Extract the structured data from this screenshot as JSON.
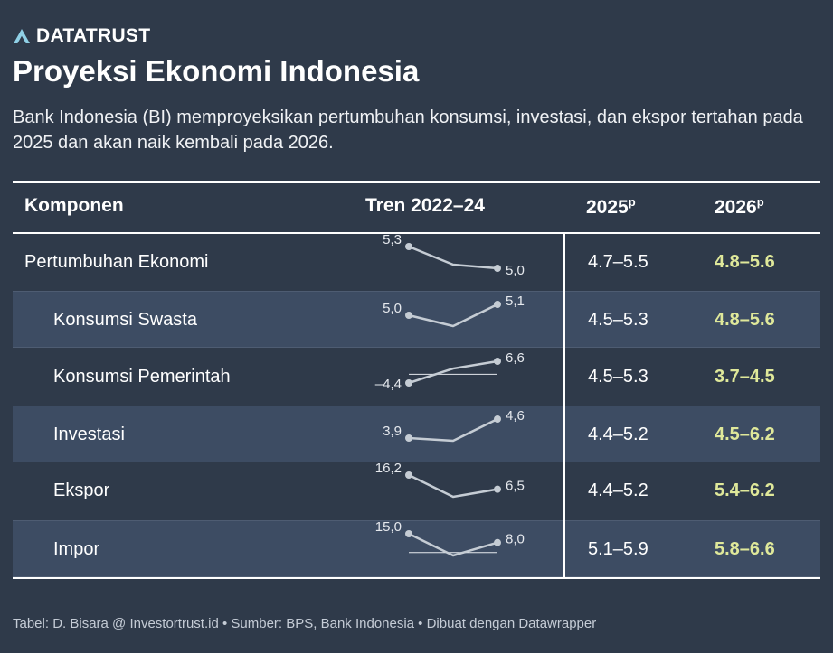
{
  "brand": {
    "name": "DATATRUST"
  },
  "title": "Proyeksi Ekonomi Indonesia",
  "subtitle": "Bank Indonesia (BI) memproyeksikan pertumbuhan konsumsi, investasi, dan ekspor tertahan pada 2025 dan akan naik kembali pada 2026.",
  "table": {
    "headers": {
      "component": "Komponen",
      "trend": "Tren 2022–24",
      "y2025": "2025",
      "y2025_sup": "p",
      "y2026": "2026",
      "y2026_sup": "p"
    },
    "rows": [
      {
        "label": "Pertumbuhan Ekonomi",
        "v2025": "4.7–5.5",
        "v2026": "4.8–5.6",
        "trend_start_label": "5,3",
        "trend_end_label": "5,0"
      },
      {
        "label": "Konsumsi Swasta",
        "v2025": "4.5–5.3",
        "v2026": "4.8–5.6",
        "trend_start_label": "5,0",
        "trend_end_label": "5,1"
      },
      {
        "label": "Konsumsi Pemerintah",
        "v2025": "4.5–5.3",
        "v2026": "3.7–4.5",
        "trend_start_label": "–4,4",
        "trend_end_label": "6,6"
      },
      {
        "label": "Investasi",
        "v2025": "4.4–5.2",
        "v2026": "4.5–6.2",
        "trend_start_label": "3,9",
        "trend_end_label": "4,6"
      },
      {
        "label": "Ekspor",
        "v2025": "4.4–5.2",
        "v2026": "5.4–6.2",
        "trend_start_label": "16,2",
        "trend_end_label": "6,5"
      },
      {
        "label": "Impor",
        "v2025": "5.1–5.9",
        "v2026": "5.8–6.6",
        "trend_start_label": "15,0",
        "trend_end_label": "8,0"
      }
    ]
  },
  "chart_data": {
    "type": "line",
    "title": "Tren 2022–24",
    "x": [
      2022,
      2023,
      2024
    ],
    "series": [
      {
        "name": "Pertumbuhan Ekonomi",
        "values": [
          5.3,
          5.05,
          5.0
        ]
      },
      {
        "name": "Konsumsi Swasta",
        "values": [
          5.0,
          4.9,
          5.1
        ]
      },
      {
        "name": "Konsumsi Pemerintah",
        "values": [
          -4.4,
          2.9,
          6.6
        ]
      },
      {
        "name": "Investasi",
        "values": [
          3.9,
          3.8,
          4.6
        ]
      },
      {
        "name": "Ekspor",
        "values": [
          16.2,
          1.3,
          6.5
        ]
      },
      {
        "name": "Impor",
        "values": [
          15.0,
          -2.3,
          8.0
        ]
      }
    ],
    "zero_baseline_rows": [
      "Konsumsi Pemerintah",
      "Impor"
    ],
    "colors": {
      "line": "#c5ccd4",
      "baseline": "#e6e9ee",
      "highlight": "#dfe89a"
    }
  },
  "footer": "Tabel: D. Bisara @ Investortrust.id • Sumber: BPS, Bank Indonesia • Dibuat dengan Datawrapper"
}
